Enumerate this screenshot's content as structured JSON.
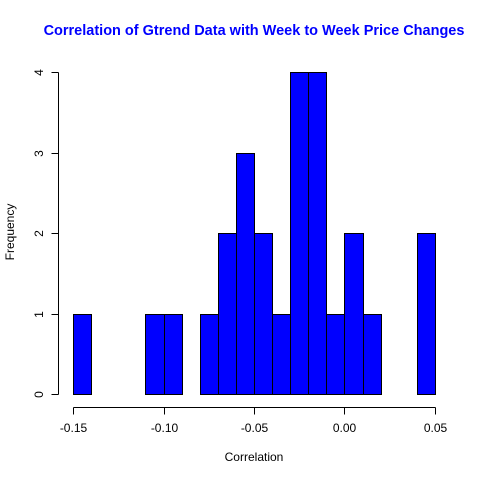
{
  "chart_data": {
    "type": "histogram",
    "title": "Correlation of Gtrend Data with Week to Week Price Changes",
    "title_color": "#0000FF",
    "bar_color": "#0000FF",
    "xlabel": "Correlation",
    "ylabel": "Frequency",
    "xlim": [
      -0.15,
      0.05
    ],
    "ylim": [
      0,
      4
    ],
    "bin_width": 0.01,
    "x_ticks": [
      -0.15,
      -0.1,
      -0.05,
      0.0,
      0.05
    ],
    "x_tick_labels": [
      "-0.15",
      "-0.10",
      "-0.05",
      "0.00",
      "0.05"
    ],
    "y_ticks": [
      0,
      1,
      2,
      3,
      4
    ],
    "y_tick_labels": [
      "0",
      "1",
      "2",
      "3",
      "4"
    ],
    "bins": [
      {
        "x0": -0.15,
        "x1": -0.14,
        "count": 1
      },
      {
        "x0": -0.14,
        "x1": -0.13,
        "count": 0
      },
      {
        "x0": -0.13,
        "x1": -0.12,
        "count": 0
      },
      {
        "x0": -0.12,
        "x1": -0.11,
        "count": 0
      },
      {
        "x0": -0.11,
        "x1": -0.1,
        "count": 1
      },
      {
        "x0": -0.1,
        "x1": -0.09,
        "count": 1
      },
      {
        "x0": -0.09,
        "x1": -0.08,
        "count": 0
      },
      {
        "x0": -0.08,
        "x1": -0.07,
        "count": 1
      },
      {
        "x0": -0.07,
        "x1": -0.06,
        "count": 2
      },
      {
        "x0": -0.06,
        "x1": -0.05,
        "count": 3
      },
      {
        "x0": -0.05,
        "x1": -0.04,
        "count": 2
      },
      {
        "x0": -0.04,
        "x1": -0.03,
        "count": 1
      },
      {
        "x0": -0.03,
        "x1": -0.02,
        "count": 4
      },
      {
        "x0": -0.02,
        "x1": -0.01,
        "count": 4
      },
      {
        "x0": -0.01,
        "x1": 0.0,
        "count": 1
      },
      {
        "x0": 0.0,
        "x1": 0.01,
        "count": 2
      },
      {
        "x0": 0.01,
        "x1": 0.02,
        "count": 1
      },
      {
        "x0": 0.02,
        "x1": 0.03,
        "count": 0
      },
      {
        "x0": 0.03,
        "x1": 0.04,
        "count": 0
      },
      {
        "x0": 0.04,
        "x1": 0.05,
        "count": 2
      }
    ]
  }
}
